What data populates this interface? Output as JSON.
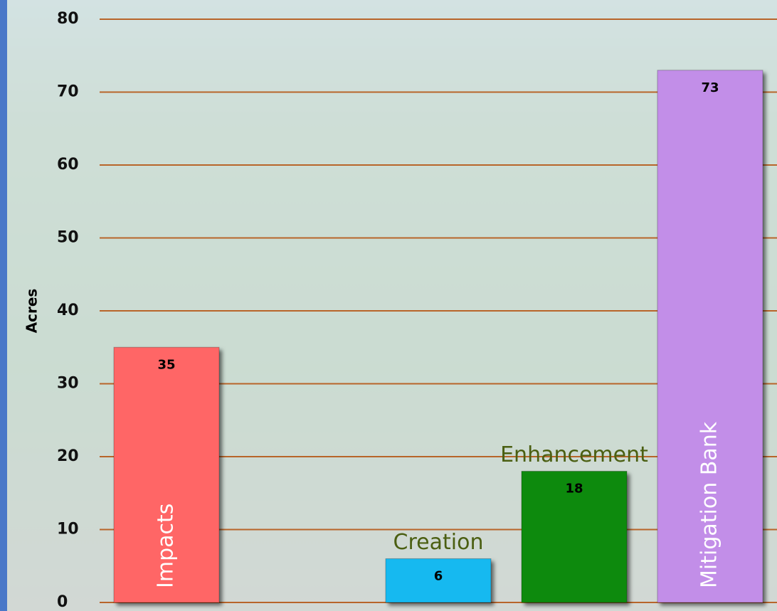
{
  "chart_data": {
    "type": "bar",
    "y_label": "Acres",
    "categories": [
      "Impacts",
      null,
      "Creation",
      "Enhancement",
      "Mitigation Bank"
    ],
    "values": [
      35,
      null,
      6,
      18,
      73
    ],
    "colors": [
      "#ff6666",
      null,
      "#19b9f0",
      "#0a8a0a",
      "#c28ee8"
    ],
    "ylim": [
      0,
      80
    ],
    "yticks": [
      0,
      10,
      20,
      30,
      40,
      50,
      60,
      70,
      80
    ],
    "grid": true
  }
}
